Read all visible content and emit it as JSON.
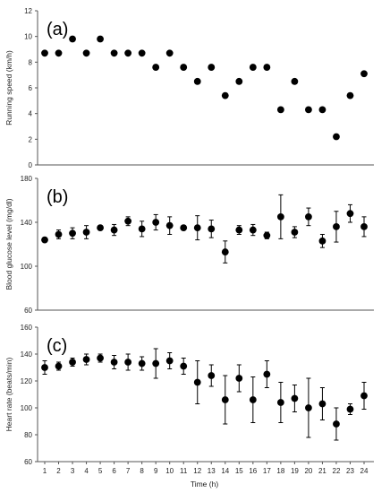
{
  "chart_data": [
    {
      "type": "scatter",
      "panel_label": "(a)",
      "ylabel": "Running speed (km/h)",
      "ylim": [
        0,
        12
      ],
      "yticks": [
        0,
        2,
        4,
        6,
        8,
        10,
        12
      ],
      "grid": false,
      "series": [
        {
          "x": [
            1,
            2,
            3,
            4,
            5,
            6,
            7,
            8,
            9,
            10,
            11,
            12,
            13,
            14,
            15,
            16,
            17,
            18,
            19,
            20,
            21,
            22,
            23,
            24
          ],
          "values": [
            8.7,
            8.7,
            9.8,
            8.7,
            9.8,
            8.7,
            8.7,
            8.7,
            7.6,
            8.7,
            7.6,
            6.5,
            7.6,
            5.4,
            6.5,
            7.6,
            7.6,
            4.3,
            6.5,
            4.3,
            4.3,
            2.2,
            5.4,
            7.1
          ]
        }
      ]
    },
    {
      "type": "scatter",
      "panel_label": "(b)",
      "ylabel": "Blood glucose level (mg/dl)",
      "ylim": [
        60,
        180
      ],
      "yticks": [
        60,
        100,
        140,
        180
      ],
      "grid": false,
      "series": [
        {
          "x": [
            1,
            2,
            3,
            4,
            5,
            6,
            7,
            8,
            9,
            10,
            11,
            12,
            13,
            14,
            15,
            16,
            17,
            18,
            19,
            20,
            21,
            22,
            23,
            24
          ],
          "values": [
            124,
            129,
            130,
            131,
            135,
            133,
            141,
            134,
            140,
            137,
            135,
            135,
            134,
            113,
            133,
            133,
            128,
            145,
            131,
            145,
            123,
            136,
            148,
            136
          ],
          "err": [
            1,
            4,
            5,
            6,
            2,
            5,
            4,
            7,
            7,
            8,
            2,
            11,
            8,
            10,
            4,
            5,
            3,
            20,
            5,
            8,
            6,
            14,
            8,
            9
          ]
        }
      ]
    },
    {
      "type": "scatter",
      "panel_label": "(c)",
      "ylabel": "Heart rate (beats/min)",
      "xlabel": "Time (h)",
      "ylim": [
        60,
        160
      ],
      "yticks": [
        60,
        80,
        100,
        120,
        140,
        160
      ],
      "xticks": [
        "1",
        "2",
        "3",
        "4",
        "5",
        "6",
        "7",
        "8",
        "9",
        "10",
        "11",
        "12",
        "13",
        "14",
        "15",
        "16",
        "17",
        "18",
        "19",
        "20",
        "21",
        "22",
        "23",
        "24"
      ],
      "grid": false,
      "series": [
        {
          "x": [
            1,
            2,
            3,
            4,
            5,
            6,
            7,
            8,
            9,
            10,
            11,
            12,
            13,
            14,
            15,
            16,
            17,
            18,
            19,
            20,
            21,
            22,
            23,
            24
          ],
          "values": [
            130,
            131,
            134,
            136,
            137,
            134,
            134,
            133,
            133,
            135,
            131,
            119,
            124,
            106,
            122,
            106,
            125,
            104,
            107,
            100,
            103,
            88,
            99,
            109
          ],
          "err": [
            5,
            3,
            3,
            4,
            3,
            5,
            6,
            5,
            11,
            6,
            6,
            16,
            8,
            18,
            10,
            17,
            10,
            15,
            10,
            22,
            12,
            12,
            4,
            10
          ]
        }
      ]
    }
  ]
}
